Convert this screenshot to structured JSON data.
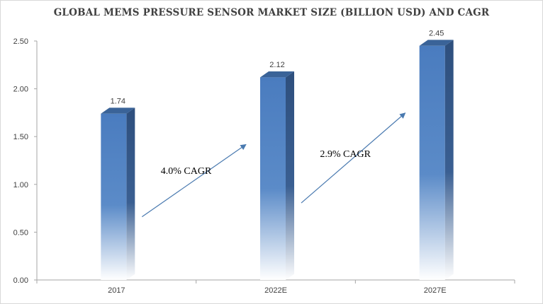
{
  "chart_data": {
    "type": "bar",
    "title": "GLOBAL MEMS PRESSURE SENSOR MARKET SIZE (BILLION USD) AND CAGR",
    "xlabel": "",
    "ylabel": "",
    "categories": [
      "2017",
      "2022E",
      "2027E"
    ],
    "values": [
      1.74,
      2.12,
      2.45
    ],
    "data_labels": [
      "1.74",
      "2.12",
      "2.45"
    ],
    "ylim": [
      0,
      2.5
    ],
    "y_ticks": [
      "0.00",
      "0.50",
      "1.00",
      "1.50",
      "2.00",
      "2.50"
    ],
    "y_tick_values": [
      0,
      0.5,
      1.0,
      1.5,
      2.0,
      2.5
    ],
    "grid": false,
    "legend": "none",
    "annotations": [
      "4.0% CAGR",
      "2.9% CAGR"
    ],
    "colors": {
      "bar_top": "#4a7cbf",
      "bar_mid": "#5b8bc8",
      "bar_fade": "#ffffff",
      "bar_side": "#2e4f7d",
      "bar_cap": "#3a6398",
      "arrow": "#4a7ab0"
    }
  }
}
